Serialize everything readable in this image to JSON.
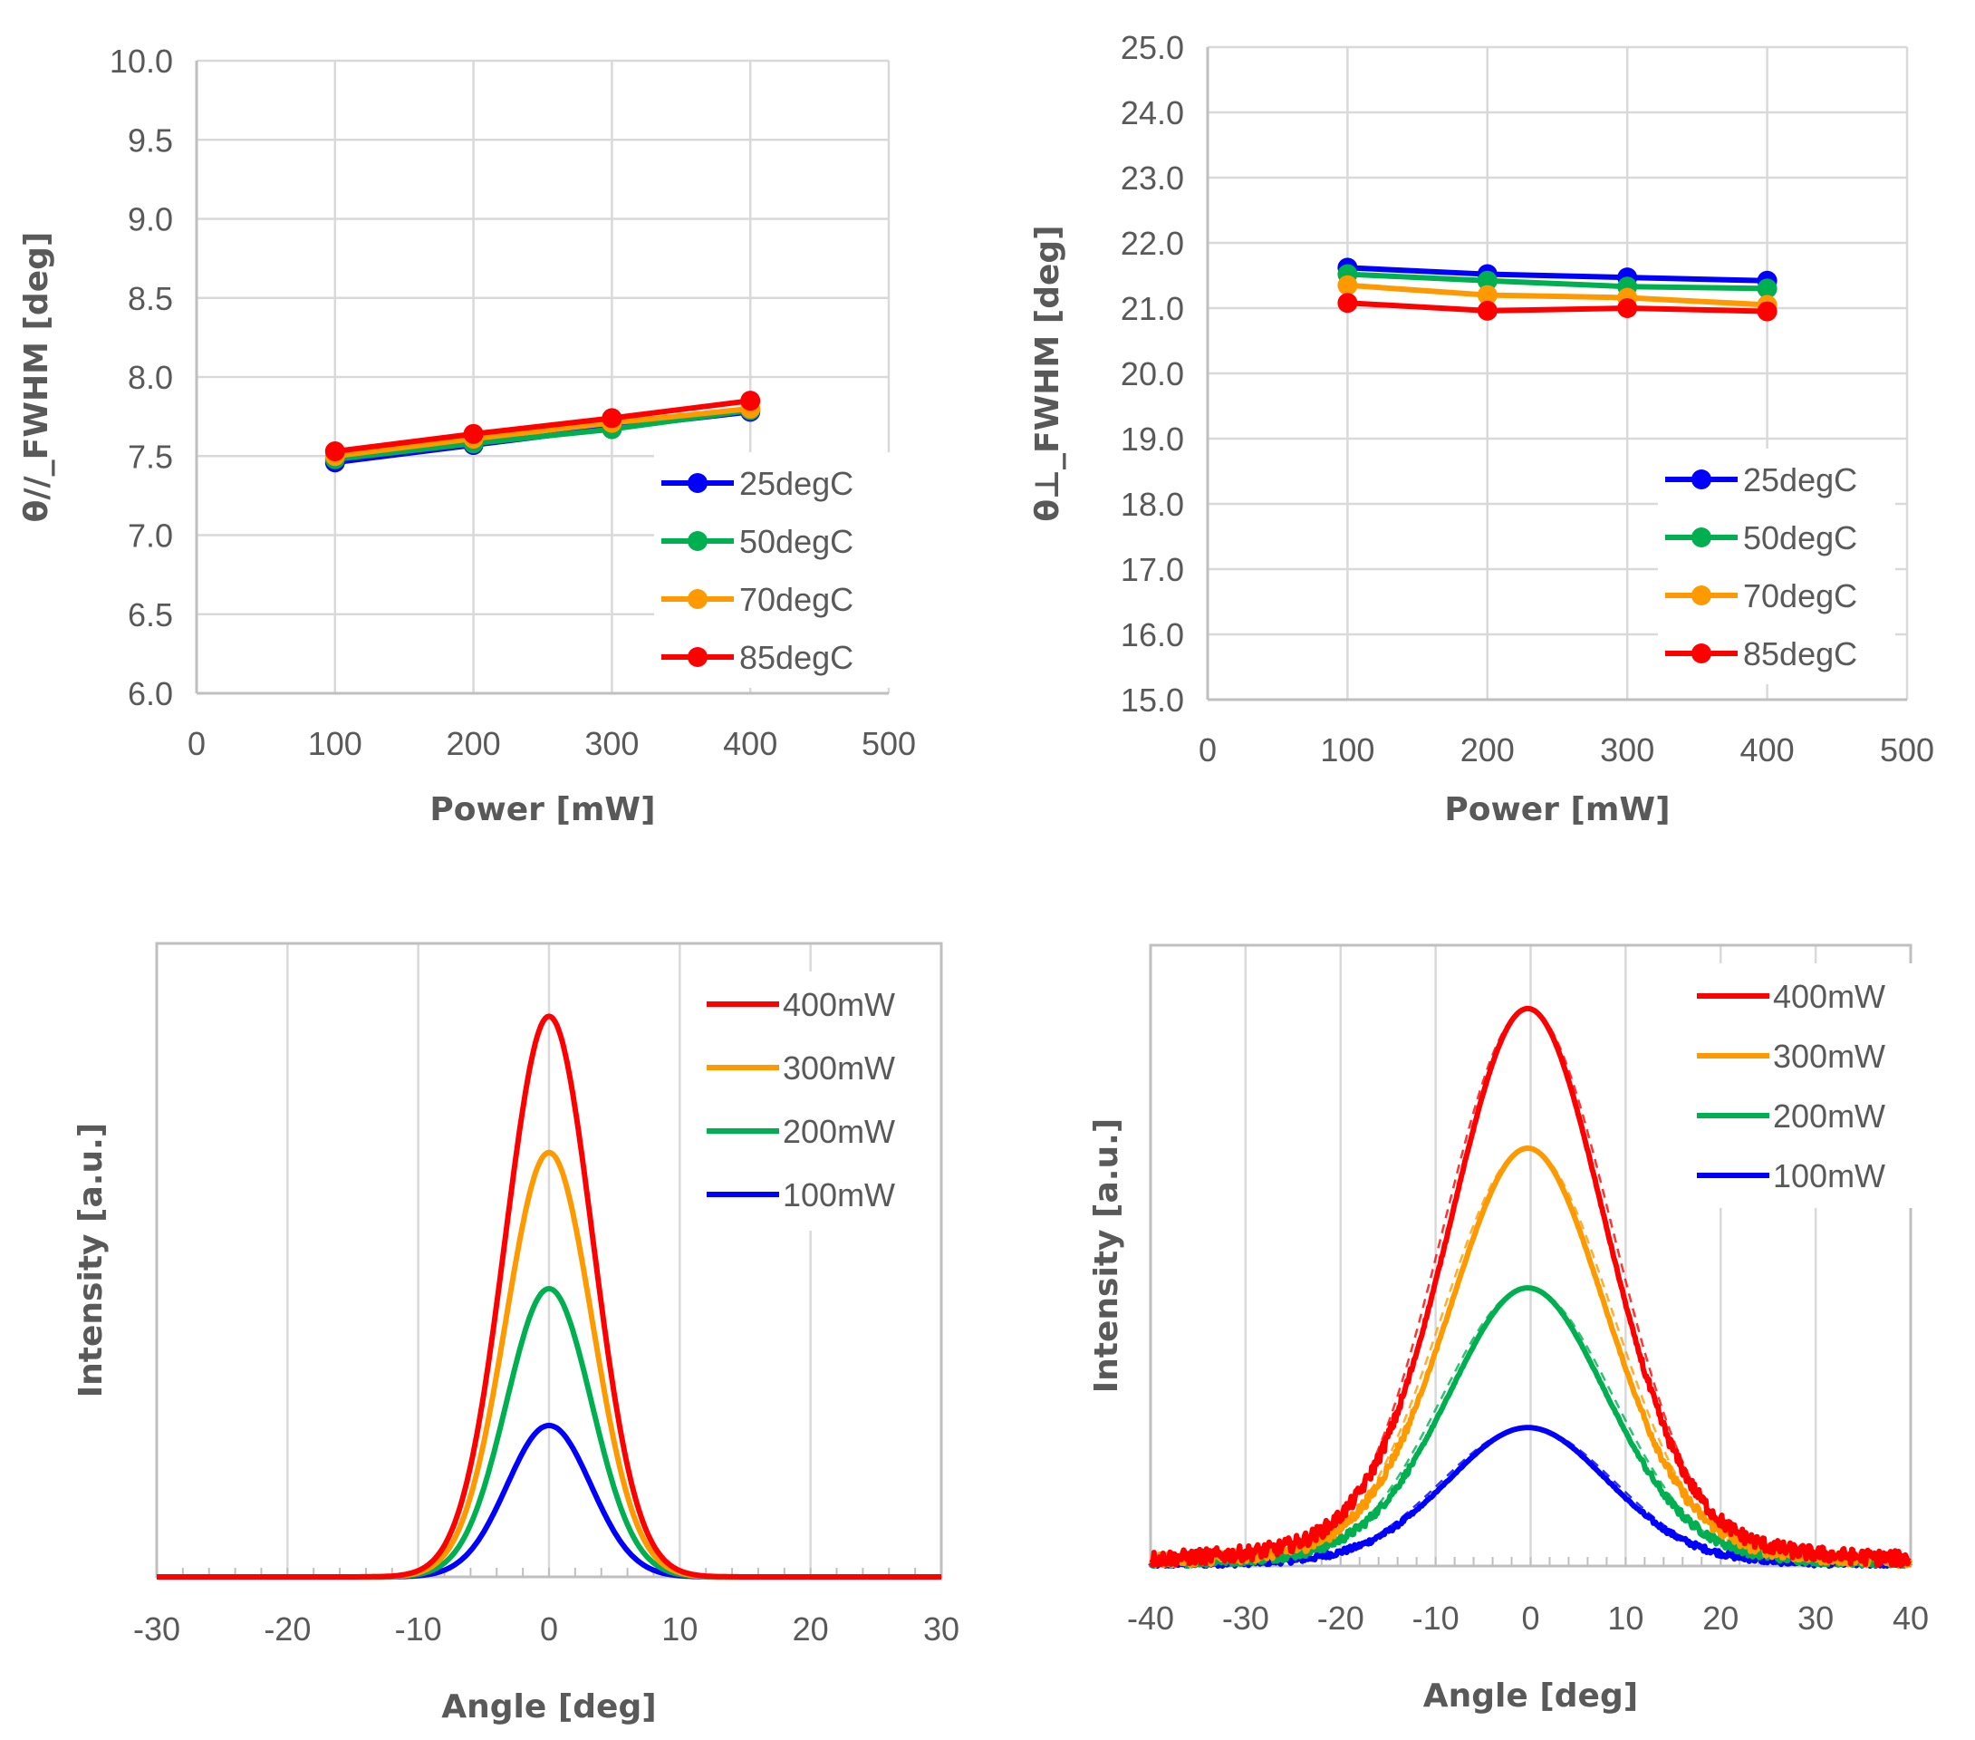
{
  "chart_data": [
    {
      "id": "theta-parallel",
      "type": "line",
      "title": "",
      "xlabel": "Power [mW]",
      "ylabel": "θ//_FWHM [deg]",
      "xlim": [
        0,
        500
      ],
      "ylim": [
        6.0,
        10.0
      ],
      "xticks": [
        0,
        100,
        200,
        300,
        400,
        500
      ],
      "yticks": [
        6.0,
        6.5,
        7.0,
        7.5,
        8.0,
        8.5,
        9.0,
        9.5,
        10.0
      ],
      "ytick_decimals": 1,
      "grid": true,
      "markers": true,
      "legend_position": "bottom-right",
      "x": [
        100,
        200,
        300,
        400
      ],
      "series": [
        {
          "name": "25degC",
          "color": "#0000ff",
          "values": [
            7.46,
            7.57,
            7.68,
            7.78
          ]
        },
        {
          "name": "50degC",
          "color": "#00b050",
          "values": [
            7.48,
            7.58,
            7.67,
            7.79
          ]
        },
        {
          "name": "70degC",
          "color": "#ff9900",
          "values": [
            7.5,
            7.61,
            7.71,
            7.8
          ]
        },
        {
          "name": "85degC",
          "color": "#ff0000",
          "values": [
            7.53,
            7.64,
            7.74,
            7.85
          ]
        }
      ]
    },
    {
      "id": "theta-perpendicular",
      "type": "line",
      "title": "",
      "xlabel": "Power [mW]",
      "ylabel": "θ⊥_FWHM [deg]",
      "xlim": [
        0,
        500
      ],
      "ylim": [
        15.0,
        25.0
      ],
      "xticks": [
        0,
        100,
        200,
        300,
        400,
        500
      ],
      "yticks": [
        15.0,
        16.0,
        17.0,
        18.0,
        19.0,
        20.0,
        21.0,
        22.0,
        23.0,
        24.0,
        25.0
      ],
      "ytick_decimals": 1,
      "grid": true,
      "markers": true,
      "legend_position": "bottom-right",
      "x": [
        100,
        200,
        300,
        400
      ],
      "series": [
        {
          "name": "25degC",
          "color": "#0000ff",
          "values": [
            21.62,
            21.52,
            21.47,
            21.42
          ]
        },
        {
          "name": "50degC",
          "color": "#00b050",
          "values": [
            21.52,
            21.42,
            21.33,
            21.3
          ]
        },
        {
          "name": "70degC",
          "color": "#ff9900",
          "values": [
            21.35,
            21.2,
            21.16,
            21.05
          ]
        },
        {
          "name": "85degC",
          "color": "#ff0000",
          "values": [
            21.08,
            20.96,
            21.0,
            20.95
          ]
        }
      ]
    },
    {
      "id": "far-field-parallel",
      "type": "line",
      "title": "",
      "xlabel": "Angle [deg]",
      "ylabel": "Intensity [a.u.]",
      "xlim": [
        -30,
        30
      ],
      "ylim": [
        0,
        1
      ],
      "xticks": [
        -30,
        -20,
        -10,
        0,
        10,
        20,
        30
      ],
      "minor_xtick_step": 2,
      "yticks_shown": false,
      "grid": true,
      "markers": false,
      "legend_position": "top-right",
      "profile": "gaussian",
      "center_deg": 0,
      "fwhm_deg": 7.7,
      "series": [
        {
          "name": "400mW",
          "color": "#ff0000",
          "peak": 0.885,
          "fwhm_deg": 7.85
        },
        {
          "name": "300mW",
          "color": "#ff9900",
          "peak": 0.67,
          "fwhm_deg": 7.75
        },
        {
          "name": "200mW",
          "color": "#00b050",
          "peak": 0.455,
          "fwhm_deg": 7.65
        },
        {
          "name": "100mW",
          "color": "#0000ff",
          "peak": 0.239,
          "fwhm_deg": 7.55
        }
      ]
    },
    {
      "id": "far-field-perpendicular",
      "type": "line",
      "title": "",
      "xlabel": "Angle [deg]",
      "ylabel": "Intensity [a.u.]",
      "xlim": [
        -40,
        40
      ],
      "ylim": [
        0,
        1
      ],
      "xticks": [
        -40,
        -30,
        -20,
        -10,
        0,
        10,
        20,
        30,
        40
      ],
      "minor_xtick_step": 2,
      "yticks_shown": false,
      "grid": true,
      "markers": false,
      "legend_position": "top-right",
      "profile": "gaussian-with-wide-tails (solid measured, dashed fit)",
      "center_deg": -0.3,
      "series": [
        {
          "name": "400mW",
          "color": "#ff0000",
          "peak": 0.898,
          "fwhm_deg": 20.95
        },
        {
          "name": "300mW",
          "color": "#ff9900",
          "peak": 0.673,
          "fwhm_deg": 21.05
        },
        {
          "name": "200mW",
          "color": "#00b050",
          "peak": 0.448,
          "fwhm_deg": 21.3
        },
        {
          "name": "100mW",
          "color": "#0000ff",
          "peak": 0.223,
          "fwhm_deg": 21.6
        }
      ]
    }
  ]
}
